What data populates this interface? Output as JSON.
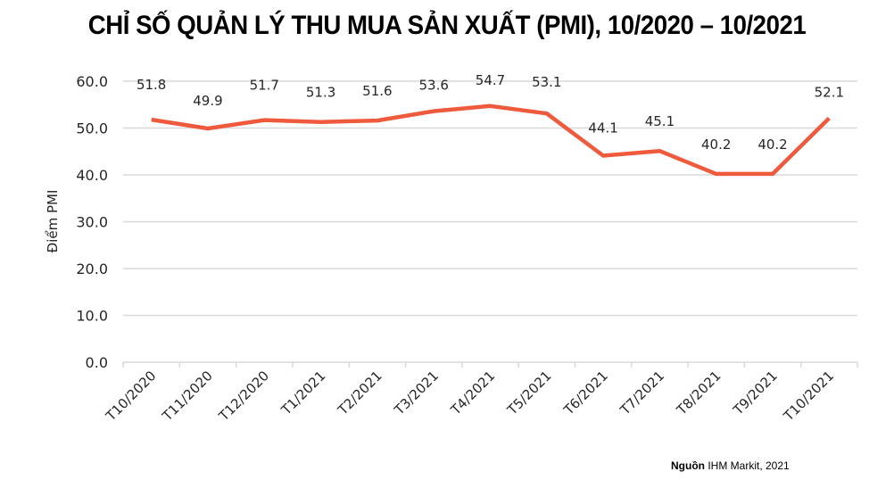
{
  "title": "CHỈ SỐ QUẢN LÝ THU MUA SẢN XUẤT (PMI), 10/2020 – 10/2021",
  "source": {
    "label": "Nguồn",
    "text": "IHM Markit, 2021"
  },
  "colors": {
    "line": "#f05a3c",
    "grid": "#d9d9d9",
    "text": "#262626"
  },
  "chart_data": {
    "type": "line",
    "title": "CHỈ SỐ QUẢN LÝ THU MUA SẢN XUẤT (PMI), 10/2020 – 10/2021",
    "xlabel": "",
    "ylabel": "Điểm PMI",
    "ylim": [
      0,
      60
    ],
    "yticks": [
      "0.0",
      "10.0",
      "20.0",
      "30.0",
      "40.0",
      "50.0",
      "60.0"
    ],
    "grid": true,
    "legend": null,
    "categories": [
      "T10/2020",
      "T11/2020",
      "T12/2020",
      "T1/2021",
      "T2/2021",
      "T3/2021",
      "T4/2021",
      "T5/2021",
      "T6/2021",
      "T7/2021",
      "T8/2021",
      "T9/2021",
      "T10/2021"
    ],
    "series": [
      {
        "name": "PMI",
        "values": [
          51.8,
          49.9,
          51.7,
          51.3,
          51.6,
          53.6,
          54.7,
          53.1,
          44.1,
          45.1,
          40.2,
          40.2,
          52.1
        ]
      }
    ],
    "data_labels": [
      "51.8",
      "49.9",
      "51.7",
      "51.3",
      "51.6",
      "53.6",
      "54.7",
      "53.1",
      "44.1",
      "45.1",
      "40.2",
      "40.2",
      "52.1"
    ],
    "annotations": [
      "Nguồn IHM Markit, 2021"
    ]
  }
}
